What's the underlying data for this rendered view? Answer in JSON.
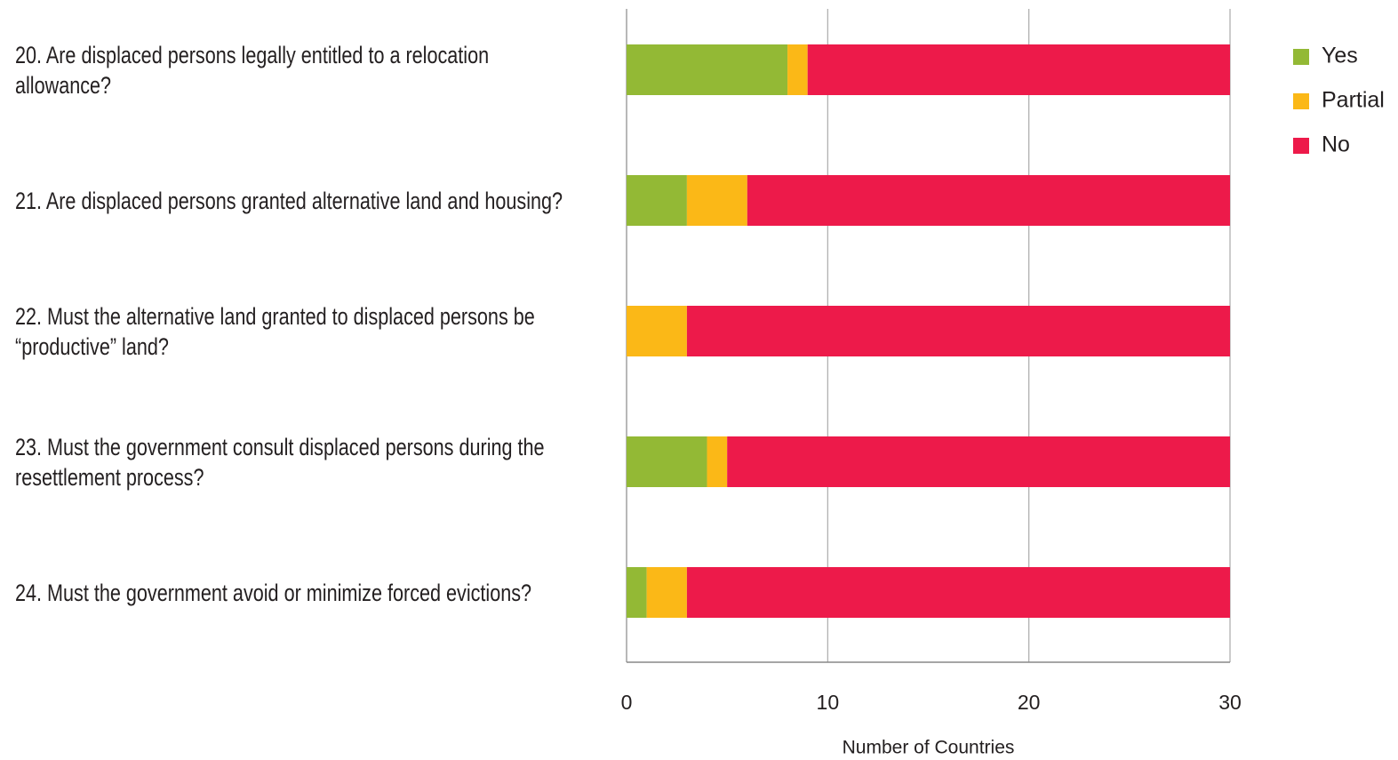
{
  "chart_data": {
    "type": "stacked-bar-horizontal",
    "categories": [
      "20. Are displaced persons legally entitled to a relocation allowance?",
      "21. Are displaced persons granted alternative land and housing?",
      "22. Must the alternative land granted to displaced persons be “productive” land?",
      "23. Must the government consult displaced persons during the resettlement process?",
      "24. Must the government avoid or minimize forced evictions?"
    ],
    "series": [
      {
        "name": "Yes",
        "color": "#93b935",
        "values": [
          8,
          3,
          0,
          4,
          1
        ]
      },
      {
        "name": "Partial",
        "color": "#fbb817",
        "values": [
          1,
          3,
          3,
          1,
          2
        ]
      },
      {
        "name": "No",
        "color": "#ed1a4a",
        "values": [
          21,
          24,
          27,
          25,
          27
        ]
      }
    ],
    "xlabel": "Number of Countries",
    "xlim": [
      0,
      30
    ],
    "xticks": [
      0,
      10,
      20,
      30
    ],
    "grid": true,
    "legend": "top-right"
  }
}
